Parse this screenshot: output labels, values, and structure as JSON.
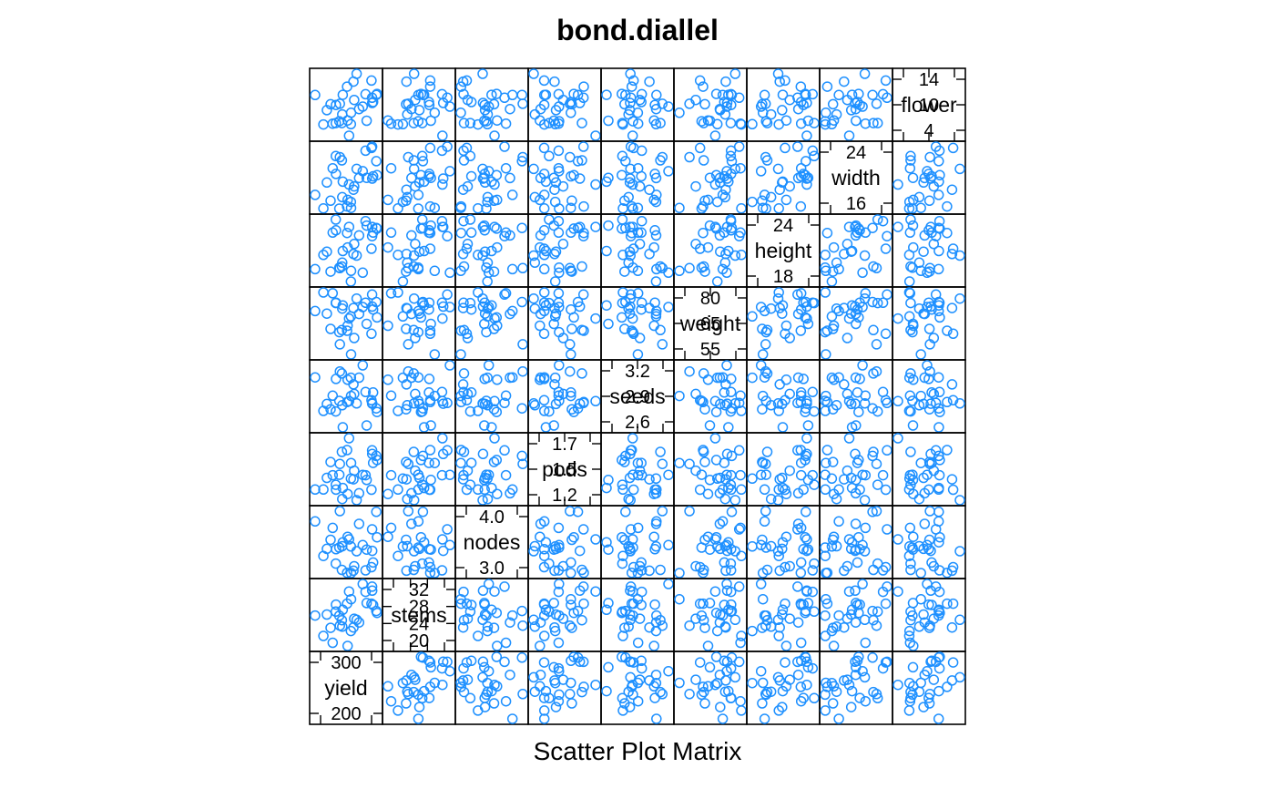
{
  "chart_data": {
    "type": "scatter",
    "subtype": "scatter-plot-matrix",
    "title": "bond.diallel",
    "xlabel": "Scatter Plot Matrix",
    "point_color": "#1E90FF",
    "point_shape": "open-circle",
    "variables": [
      {
        "name": "yield",
        "ticks": [
          "200",
          "300"
        ]
      },
      {
        "name": "stems",
        "ticks": [
          "20",
          "24",
          "28",
          "32"
        ]
      },
      {
        "name": "nodes",
        "ticks": [
          "3.0",
          "4.0"
        ]
      },
      {
        "name": "pods",
        "ticks": [
          "1.2",
          "1.5",
          "1.7"
        ]
      },
      {
        "name": "seeds",
        "ticks": [
          "2.6",
          "2.9",
          "3.2"
        ]
      },
      {
        "name": "weight",
        "ticks": [
          "55",
          "65",
          "80"
        ]
      },
      {
        "name": "height",
        "ticks": [
          "18",
          "24"
        ]
      },
      {
        "name": "width",
        "ticks": [
          "16",
          "24"
        ]
      },
      {
        "name": "flower",
        "ticks": [
          "4",
          "10",
          "14"
        ]
      }
    ],
    "n_points": 30
  }
}
